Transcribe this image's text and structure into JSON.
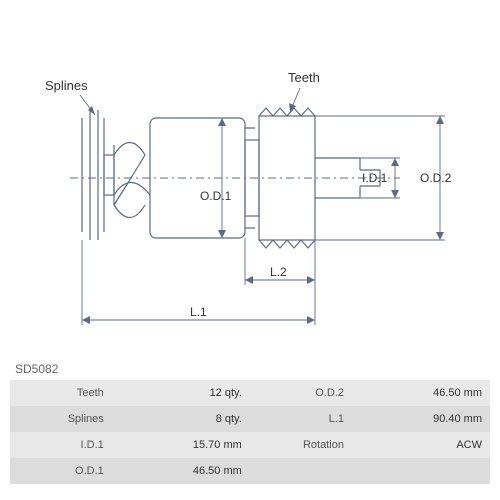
{
  "partCode": "SD5082",
  "labels": {
    "splines": "Splines",
    "teeth": "Teeth",
    "od1": "O.D.1",
    "od2": "O.D.2",
    "id1": "I.D.1",
    "l1": "L.1",
    "l2": "L.2"
  },
  "specs": [
    {
      "k1": "Teeth",
      "v1": "12 qty.",
      "k2": "O.D.2",
      "v2": "46.50 mm"
    },
    {
      "k1": "Splines",
      "v1": "8 qty.",
      "k2": "L.1",
      "v2": "90.40 mm"
    },
    {
      "k1": "I.D.1",
      "v1": "15.70 mm",
      "k2": "Rotation",
      "v2": "ACW"
    },
    {
      "k1": "O.D.1",
      "v1": "46.50 mm",
      "k2": "",
      "v2": ""
    }
  ],
  "style": {
    "lineColor": "#5a6a8a",
    "textColor": "#333333",
    "rowBg1": "#e8e8e8",
    "rowBg2": "#dcdcdc",
    "bg": "#ffffff"
  }
}
